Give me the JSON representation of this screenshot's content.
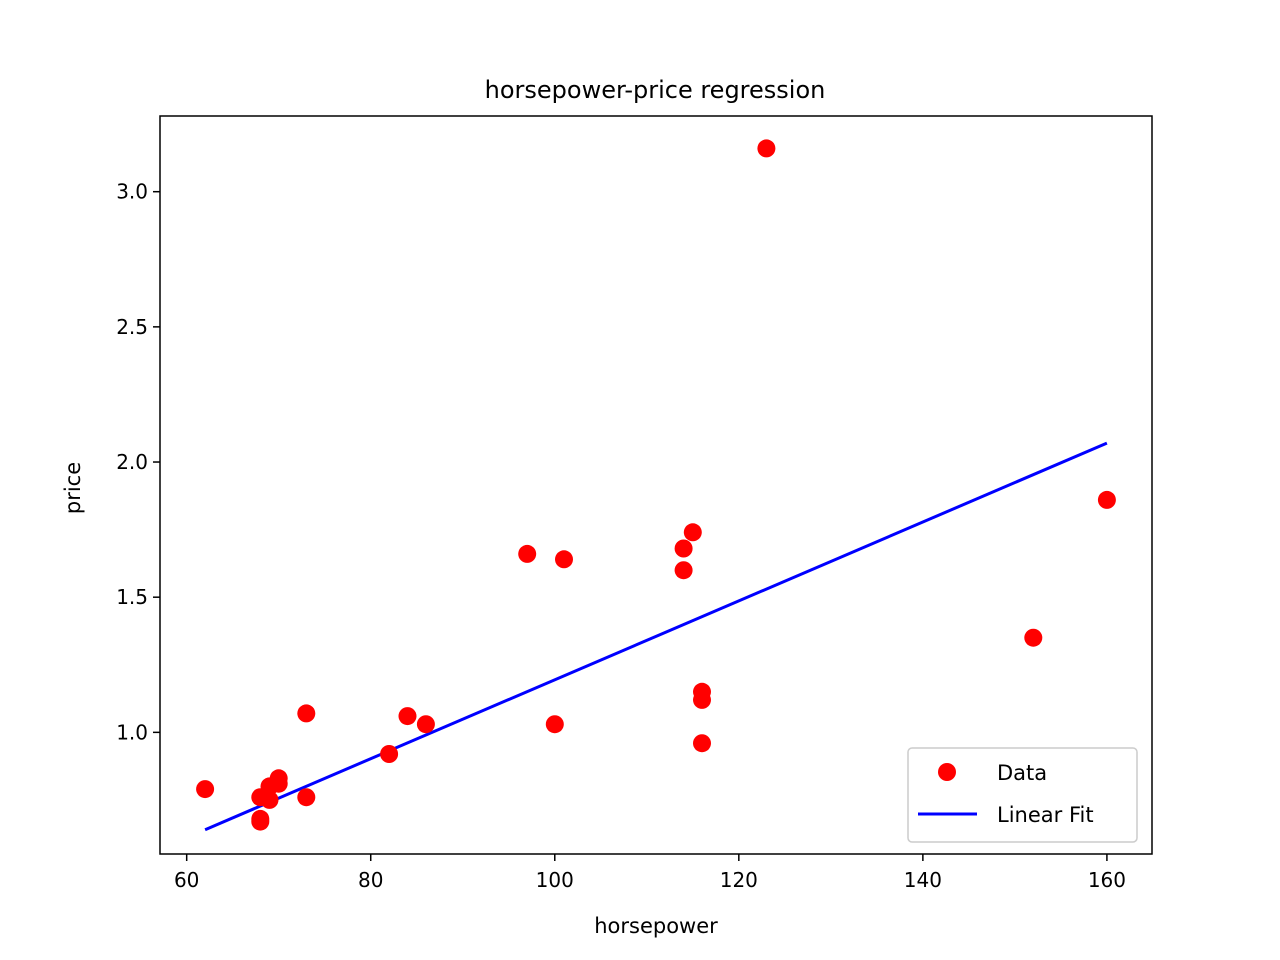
{
  "chart_data": {
    "type": "scatter",
    "title": "horsepower-price regression",
    "xlabel": "horsepower",
    "ylabel": "price",
    "xlim": [
      57.1,
      164.9
    ],
    "ylim": [
      0.55,
      3.28
    ],
    "xticks": [
      60,
      80,
      100,
      120,
      140,
      160
    ],
    "yticks": [
      1.0,
      1.5,
      2.0,
      2.5,
      3.0
    ],
    "grid": false,
    "legend_position": "lower-right",
    "series": [
      {
        "name": "Data",
        "kind": "scatter",
        "color": "#ff0000",
        "points": [
          [
            62,
            0.79
          ],
          [
            68,
            0.76
          ],
          [
            68,
            0.68
          ],
          [
            68,
            0.67
          ],
          [
            69,
            0.8
          ],
          [
            69,
            0.75
          ],
          [
            70,
            0.83
          ],
          [
            70,
            0.81
          ],
          [
            73,
            1.07
          ],
          [
            73,
            0.76
          ],
          [
            82,
            0.92
          ],
          [
            84,
            1.06
          ],
          [
            86,
            1.03
          ],
          [
            97,
            1.66
          ],
          [
            100,
            1.03
          ],
          [
            101,
            1.64
          ],
          [
            114,
            1.68
          ],
          [
            114,
            1.6
          ],
          [
            115,
            1.74
          ],
          [
            116,
            1.15
          ],
          [
            116,
            1.12
          ],
          [
            116,
            0.96
          ],
          [
            123,
            3.16
          ],
          [
            152,
            1.35
          ],
          [
            160,
            1.86
          ]
        ]
      },
      {
        "name": "Linear Fit",
        "kind": "line",
        "color": "#0000ff",
        "points": [
          [
            62,
            0.64
          ],
          [
            160,
            2.07
          ]
        ]
      }
    ]
  }
}
